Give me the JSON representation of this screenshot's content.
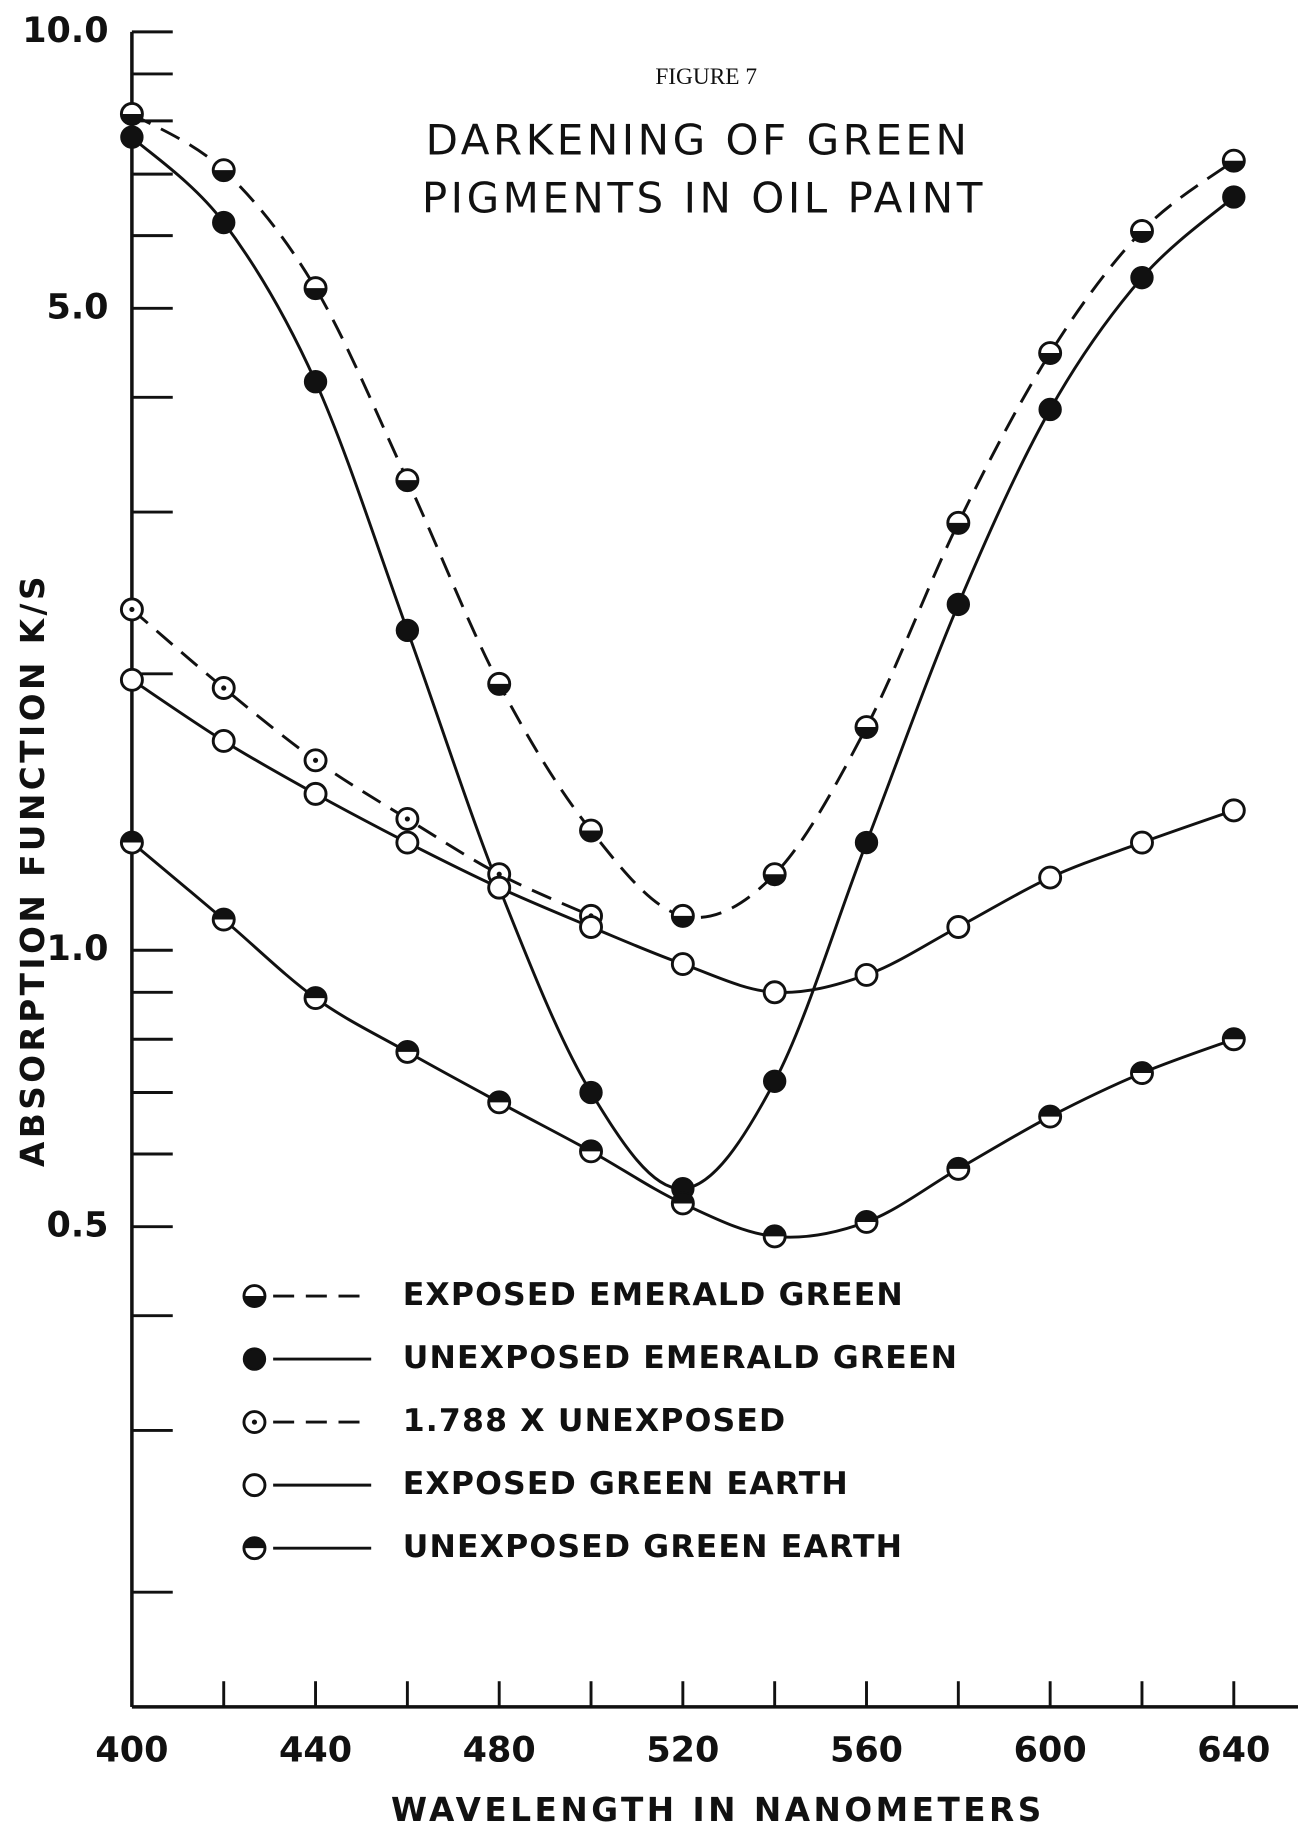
{
  "chart_data": {
    "type": "line",
    "annotation": "FIGURE 7",
    "title": [
      "DARKENING OF GREEN",
      "PIGMENTS IN OIL PAINT"
    ],
    "y_label": "ABSORPTION FUNCTION K/S",
    "x_label": "WAVELENGTH IN NANOMETERS",
    "x": [
      400,
      420,
      440,
      460,
      480,
      500,
      520,
      540,
      560,
      580,
      600,
      620,
      640
    ],
    "xlim": [
      400,
      654
    ],
    "xticks": [
      400,
      440,
      480,
      520,
      560,
      600,
      640
    ],
    "xminorticks": [
      420,
      460,
      500,
      540,
      580,
      620
    ],
    "ylim": [
      0.15,
      10
    ],
    "ylog": true,
    "yticks": [
      {
        "value": 10,
        "label": "10.0"
      },
      {
        "value": 5,
        "label": "5.0"
      },
      {
        "value": 1,
        "label": "1.0"
      },
      0.5
    ],
    "yminorticks": [
      9,
      8,
      7,
      6,
      4,
      3,
      2,
      0.9,
      0.8,
      0.7,
      0.6,
      0.4,
      0.3,
      0.2
    ],
    "color": "#111111",
    "series": [
      {
        "name": "EXPOSED EMERALD GREEN",
        "marker": "half-bottom",
        "dashed": true,
        "values": [
          8.14,
          7.07,
          5.26,
          3.25,
          1.95,
          1.35,
          1.09,
          1.21,
          1.75,
          2.92,
          4.47,
          6.07,
          7.24
        ]
      },
      {
        "name": "UNEXPOSED EMERALD GREEN",
        "marker": "filled",
        "dashed": false,
        "values": [
          7.68,
          6.2,
          4.16,
          2.23,
          1.17,
          0.7,
          0.55,
          0.72,
          1.31,
          2.38,
          3.88,
          5.4,
          6.61
        ]
      },
      {
        "name": "1.788 X UNEXPOSED",
        "marker": "dotted",
        "dashed": true,
        "values": [
          2.35,
          1.93,
          1.61,
          1.39,
          1.21,
          1.09,
          null,
          null,
          null,
          null,
          null,
          null,
          null
        ]
      },
      {
        "name": "EXPOSED GREEN EARTH",
        "marker": "open",
        "dashed": false,
        "values": [
          1.97,
          1.69,
          1.48,
          1.31,
          1.17,
          1.06,
          0.966,
          0.9,
          0.94,
          1.06,
          1.2,
          1.31,
          1.42
        ]
      },
      {
        "name": "UNEXPOSED GREEN EARTH",
        "marker": "half-top",
        "dashed": false,
        "values": [
          1.31,
          1.08,
          0.887,
          0.775,
          0.683,
          0.604,
          0.53,
          0.488,
          0.506,
          0.578,
          0.659,
          0.735,
          0.8
        ]
      }
    ]
  }
}
